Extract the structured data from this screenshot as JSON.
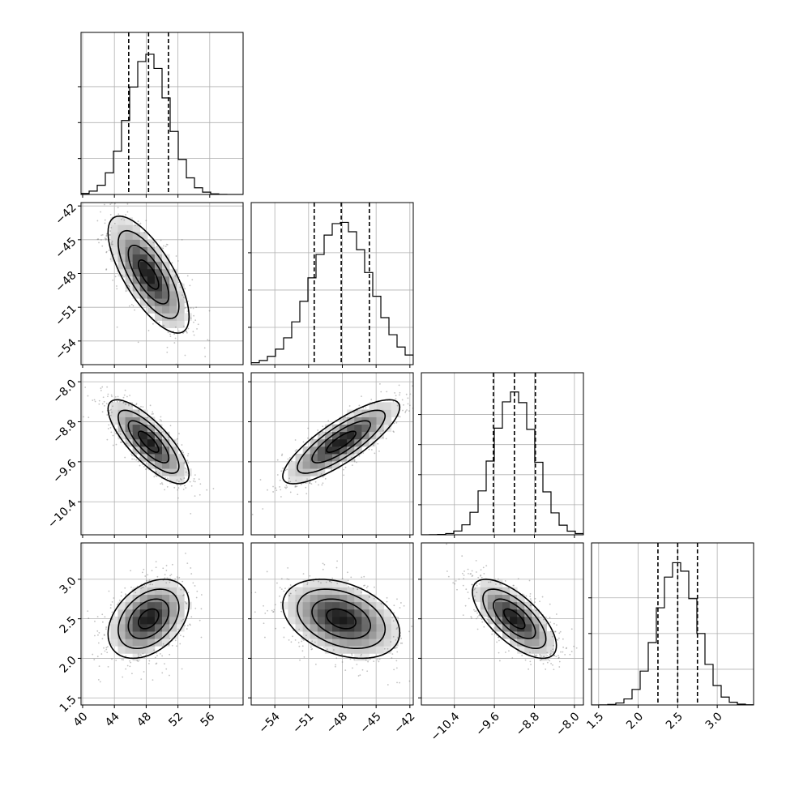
{
  "chart_data": {
    "type": "corner",
    "parameters": [
      {
        "id": "p1",
        "range": [
          39.8,
          60.2
        ],
        "ticks": [
          40,
          44,
          48,
          52,
          56
        ],
        "tick_labels": [
          "40",
          "44",
          "48",
          "52",
          "56"
        ],
        "mean": 48.3,
        "sd": 2.55,
        "quantiles": [
          45.8,
          48.3,
          50.8
        ],
        "hist_peak": 0.164
      },
      {
        "id": "p2",
        "range": [
          -56.1,
          -41.7
        ],
        "ticks": [
          -54,
          -51,
          -48,
          -45,
          -42
        ],
        "tick_labels": [
          "−54",
          "−51",
          "−48",
          "−45",
          "−42"
        ],
        "mean": -48.1,
        "sd": 2.6,
        "quantiles": [
          -50.5,
          -48.1,
          -45.6
        ],
        "hist_peak": 0.158
      },
      {
        "id": "p3",
        "range": [
          -11.06,
          -7.82
        ],
        "ticks": [
          -10.4,
          -9.6,
          -8.8,
          -8.0
        ],
        "tick_labels": [
          "−10.4",
          "−9.6",
          "−8.8",
          "−8.0"
        ],
        "mean": -9.2,
        "sd": 0.42,
        "quantiles": [
          -9.62,
          -9.2,
          -8.78
        ],
        "hist_peak": 0.98
      },
      {
        "id": "p4",
        "range": [
          1.41,
          3.46
        ],
        "ticks": [
          1.5,
          2.0,
          2.5,
          3.0
        ],
        "tick_labels": [
          "1.5",
          "2.0",
          "2.5",
          "3.0"
        ],
        "mean": 2.5,
        "sd": 0.25,
        "quantiles": [
          2.25,
          2.5,
          2.75
        ],
        "hist_peak": 1.65
      }
    ],
    "correlations": {
      "1-0": -0.72,
      "2-0": -0.78,
      "2-1": 0.82,
      "3-0": 0.38,
      "3-1": -0.35,
      "3-2": -0.68
    },
    "hist_yticks": [
      [
        0.04,
        0.08,
        0.12
      ],
      [
        0.04,
        0.08,
        0.12
      ],
      [
        0.2,
        0.4,
        0.6,
        0.8
      ],
      [
        0.4,
        0.8,
        1.2
      ]
    ],
    "contour_levels_sigma": [
      0.5,
      1.0,
      1.5,
      2.0
    ],
    "grid": true
  }
}
